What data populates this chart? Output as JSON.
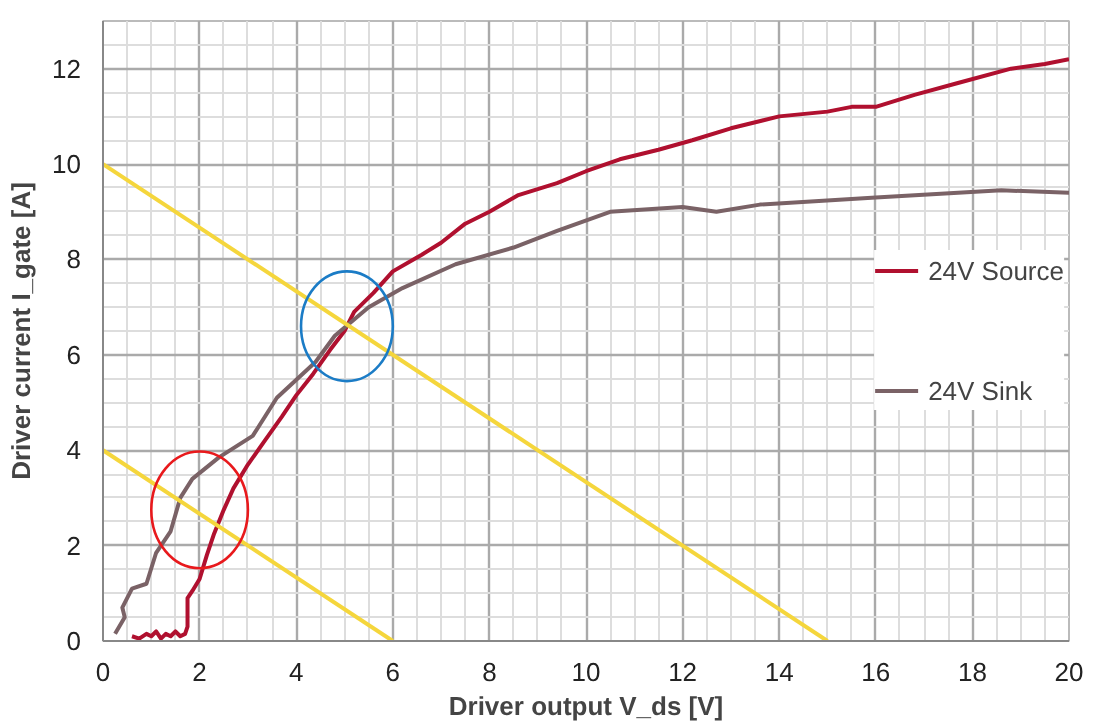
{
  "chart_data": {
    "type": "line",
    "xlabel": "Driver output V_ds [V]",
    "ylabel": "Driver current I_gate [A]",
    "xlim": [
      0,
      20
    ],
    "ylim": [
      0,
      13
    ],
    "xticks": [
      0,
      2,
      4,
      6,
      8,
      10,
      12,
      14,
      16,
      18,
      20
    ],
    "yticks": [
      0,
      2,
      4,
      6,
      8,
      10,
      12
    ],
    "grid": true,
    "legend": "right",
    "marker": "none",
    "line_style": "solid",
    "series": [
      {
        "name": "24V Source",
        "color": "#b0102f",
        "x": [
          0.6,
          0.75,
          0.9,
          1.0,
          1.1,
          1.2,
          1.3,
          1.4,
          1.5,
          1.6,
          1.7,
          1.75,
          1.75,
          1.85,
          2.0,
          2.15,
          2.3,
          2.5,
          2.7,
          3.0,
          3.35,
          3.7,
          4.0,
          4.35,
          4.7,
          5.0,
          5.2,
          5.6,
          6.0,
          6.6,
          7.0,
          7.5,
          8.0,
          8.6,
          9.4,
          10.0,
          10.7,
          11.5,
          12.2,
          13.0,
          14.0,
          15.0,
          15.5,
          16.0,
          16.8,
          17.7,
          18.8,
          19.5,
          20.0
        ],
        "values": [
          0.1,
          0.05,
          0.15,
          0.1,
          0.2,
          0.05,
          0.15,
          0.1,
          0.2,
          0.1,
          0.15,
          0.3,
          0.9,
          1.05,
          1.3,
          1.8,
          2.25,
          2.75,
          3.2,
          3.7,
          4.2,
          4.7,
          5.15,
          5.6,
          6.1,
          6.5,
          6.9,
          7.3,
          7.75,
          8.1,
          8.35,
          8.75,
          9.0,
          9.35,
          9.6,
          9.85,
          10.1,
          10.3,
          10.5,
          10.75,
          11.0,
          11.1,
          11.2,
          11.2,
          11.45,
          11.7,
          12.0,
          12.1,
          12.2
        ]
      },
      {
        "name": "24V Sink",
        "color": "#7a6266",
        "x": [
          0.25,
          0.45,
          0.4,
          0.6,
          0.9,
          1.1,
          1.4,
          1.6,
          1.85,
          2.4,
          3.1,
          3.6,
          4.4,
          4.8,
          5.5,
          6.2,
          7.3,
          8.5,
          9.4,
          10.5,
          12.0,
          12.7,
          13.6,
          16.0,
          18.6,
          20.0
        ],
        "values": [
          0.15,
          0.5,
          0.7,
          1.1,
          1.2,
          1.85,
          2.3,
          3.0,
          3.4,
          3.85,
          4.3,
          5.1,
          5.85,
          6.4,
          7.0,
          7.4,
          7.9,
          8.25,
          8.6,
          9.0,
          9.1,
          9.0,
          9.15,
          9.3,
          9.45,
          9.4
        ]
      },
      {
        "color": "#f5d63c",
        "x": [
          0,
          15
        ],
        "values": [
          10,
          0
        ]
      },
      {
        "color": "#f5d63c",
        "x": [
          0,
          6
        ],
        "values": [
          4,
          0
        ]
      }
    ]
  }
}
